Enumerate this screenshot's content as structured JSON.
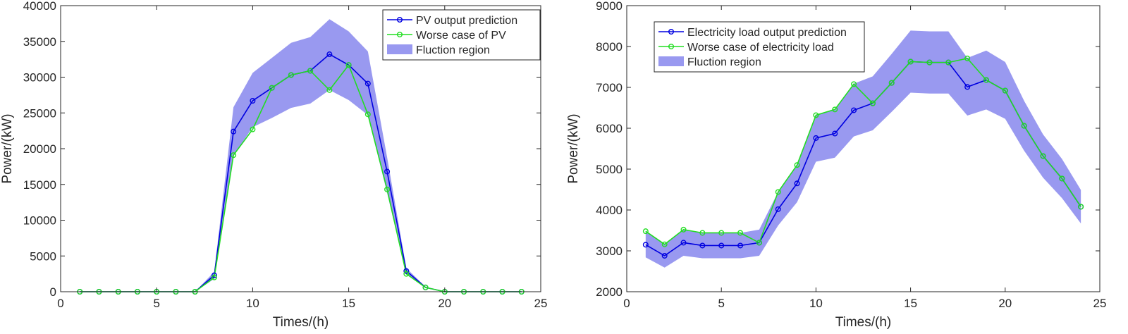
{
  "chart_data": [
    {
      "type": "line",
      "title": "",
      "xlabel": "Times/(h)",
      "ylabel": "Power/(kW)",
      "xlim": [
        0,
        25
      ],
      "ylim": [
        0,
        40000
      ],
      "xticks": [
        0,
        5,
        10,
        15,
        20,
        25
      ],
      "yticks": [
        0,
        5000,
        10000,
        15000,
        20000,
        25000,
        30000,
        35000,
        40000
      ],
      "legend_position": "top-right",
      "grid": false,
      "x": [
        1,
        2,
        3,
        4,
        5,
        6,
        7,
        8,
        9,
        10,
        11,
        12,
        13,
        14,
        15,
        16,
        17,
        18,
        19,
        20,
        21,
        22,
        23,
        24
      ],
      "series": [
        {
          "name": "PV output prediction",
          "color": "#0000e0",
          "values": [
            0,
            0,
            0,
            0,
            0,
            0,
            0,
            2300,
            22400,
            26700,
            28500,
            30300,
            30900,
            33200,
            31700,
            29100,
            16800,
            2900,
            600,
            0,
            0,
            0,
            0,
            0
          ]
        },
        {
          "name": "Worse case of PV",
          "color": "#22dd22",
          "values": [
            0,
            0,
            0,
            0,
            0,
            0,
            0,
            2000,
            19100,
            22700,
            28500,
            30300,
            30900,
            28200,
            31700,
            24800,
            14300,
            2500,
            600,
            0,
            0,
            0,
            0,
            0
          ]
        }
      ],
      "band": {
        "name": "Fluction region",
        "color": "#9999f0",
        "x": [
          7,
          8,
          9,
          10,
          11,
          12,
          13,
          14,
          15,
          16,
          17,
          18,
          19,
          20
        ],
        "upper": [
          0,
          2800,
          25800,
          30600,
          32700,
          34800,
          35600,
          38100,
          36400,
          33600,
          18800,
          3300,
          700,
          0
        ],
        "lower": [
          0,
          1800,
          19000,
          23000,
          24300,
          25700,
          26300,
          28200,
          26800,
          24700,
          13800,
          2500,
          500,
          0
        ]
      }
    },
    {
      "type": "line",
      "title": "",
      "xlabel": "Times/(h)",
      "ylabel": "Power/(kW)",
      "xlim": [
        0,
        25
      ],
      "ylim": [
        2000,
        9000
      ],
      "xticks": [
        0,
        5,
        10,
        15,
        20,
        25
      ],
      "yticks": [
        2000,
        3000,
        4000,
        5000,
        6000,
        7000,
        8000,
        9000
      ],
      "legend_position": "top-left",
      "grid": false,
      "x": [
        1,
        2,
        3,
        4,
        5,
        6,
        7,
        8,
        9,
        10,
        11,
        12,
        13,
        14,
        15,
        16,
        17,
        18,
        19,
        20,
        21,
        22,
        23,
        24
      ],
      "series": [
        {
          "name": "Electricity load output prediction",
          "color": "#0000e0",
          "values": [
            3150,
            2880,
            3200,
            3130,
            3130,
            3130,
            3200,
            4020,
            4650,
            5760,
            5870,
            6440,
            6610,
            7110,
            7630,
            7610,
            7610,
            7010,
            7180,
            6920,
            6060,
            5320,
            4770,
            4080
          ]
        },
        {
          "name": "Worse case of electricity load",
          "color": "#22dd22",
          "values": [
            3480,
            3160,
            3520,
            3440,
            3440,
            3440,
            3200,
            4440,
            5100,
            6320,
            6460,
            7080,
            6610,
            7110,
            7630,
            7610,
            7610,
            7710,
            7180,
            6920,
            6060,
            5320,
            4770,
            4080
          ]
        }
      ],
      "band": {
        "name": "Fluction region",
        "color": "#9999f0",
        "x": [
          1,
          2,
          3,
          4,
          5,
          6,
          7,
          8,
          9,
          10,
          11,
          12,
          13,
          14,
          15,
          16,
          17,
          18,
          19,
          20,
          21,
          22,
          23,
          24
        ],
        "upper": [
          3480,
          3160,
          3520,
          3440,
          3440,
          3440,
          3520,
          4440,
          5110,
          6330,
          6460,
          7090,
          7270,
          7820,
          8390,
          8370,
          8370,
          7720,
          7900,
          7620,
          6670,
          5850,
          5250,
          4490
        ],
        "lower": [
          2840,
          2590,
          2880,
          2820,
          2820,
          2820,
          2880,
          3620,
          4190,
          5180,
          5280,
          5800,
          5950,
          6400,
          6870,
          6850,
          6850,
          6310,
          6460,
          6230,
          5450,
          4790,
          4290,
          3670
        ]
      }
    }
  ]
}
